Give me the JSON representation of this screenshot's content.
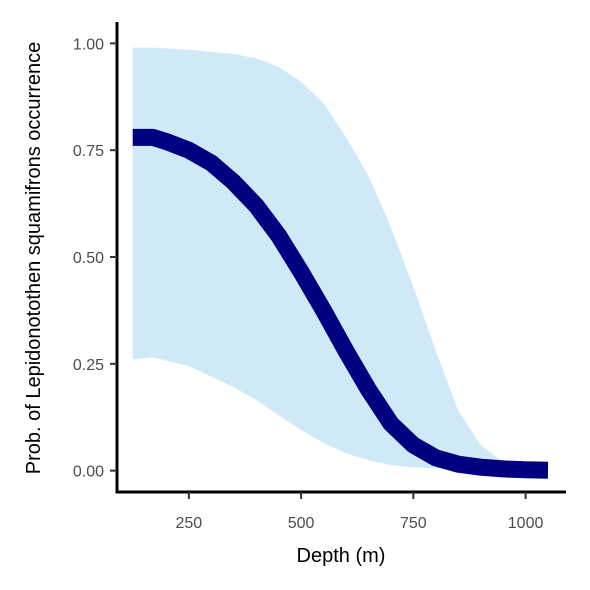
{
  "colors": {
    "ribbon": "#d0e9f6",
    "line": "#000080",
    "axis": "#000000",
    "tick_text": "#4d4d4d"
  },
  "chart_data": {
    "type": "area",
    "xlabel": "Depth (m)",
    "ylabel": "Prob. of  Lepidonotothen squamifrons  occurrence",
    "xlim": [
      90,
      1090
    ],
    "ylim": [
      -0.05,
      1.05
    ],
    "x_ticks": [
      250,
      500,
      750,
      1000
    ],
    "x_tick_labels": [
      "250",
      "500",
      "750",
      "1000"
    ],
    "y_ticks": [
      0,
      0.25,
      0.5,
      0.75,
      1.0
    ],
    "y_tick_labels": [
      "0.00",
      "0.25",
      "0.50",
      "0.75",
      "1.00"
    ],
    "grid": false,
    "legend": "none",
    "series": [
      {
        "kind": "ribbon",
        "x": [
          125,
          170,
          250,
          300,
          350,
          400,
          450,
          500,
          550,
          600,
          650,
          700,
          750,
          800,
          850,
          900,
          950,
          1000,
          1050
        ],
        "lower": [
          0.26,
          0.265,
          0.245,
          0.22,
          0.195,
          0.165,
          0.13,
          0.095,
          0.065,
          0.04,
          0.025,
          0.013,
          0.008,
          0.005,
          0.003,
          0.002,
          0.001,
          0.001,
          0.0
        ],
        "upper": [
          0.99,
          0.99,
          0.985,
          0.98,
          0.975,
          0.965,
          0.945,
          0.91,
          0.86,
          0.78,
          0.69,
          0.57,
          0.43,
          0.28,
          0.14,
          0.06,
          0.02,
          0.01,
          0.01
        ]
      },
      {
        "kind": "line",
        "x": [
          125,
          170,
          200,
          250,
          300,
          350,
          400,
          450,
          500,
          550,
          600,
          650,
          700,
          750,
          800,
          850,
          900,
          950,
          1000,
          1050
        ],
        "y": [
          0.78,
          0.78,
          0.77,
          0.75,
          0.72,
          0.675,
          0.62,
          0.55,
          0.465,
          0.375,
          0.28,
          0.19,
          0.11,
          0.06,
          0.03,
          0.015,
          0.008,
          0.004,
          0.002,
          0.001
        ]
      }
    ]
  }
}
